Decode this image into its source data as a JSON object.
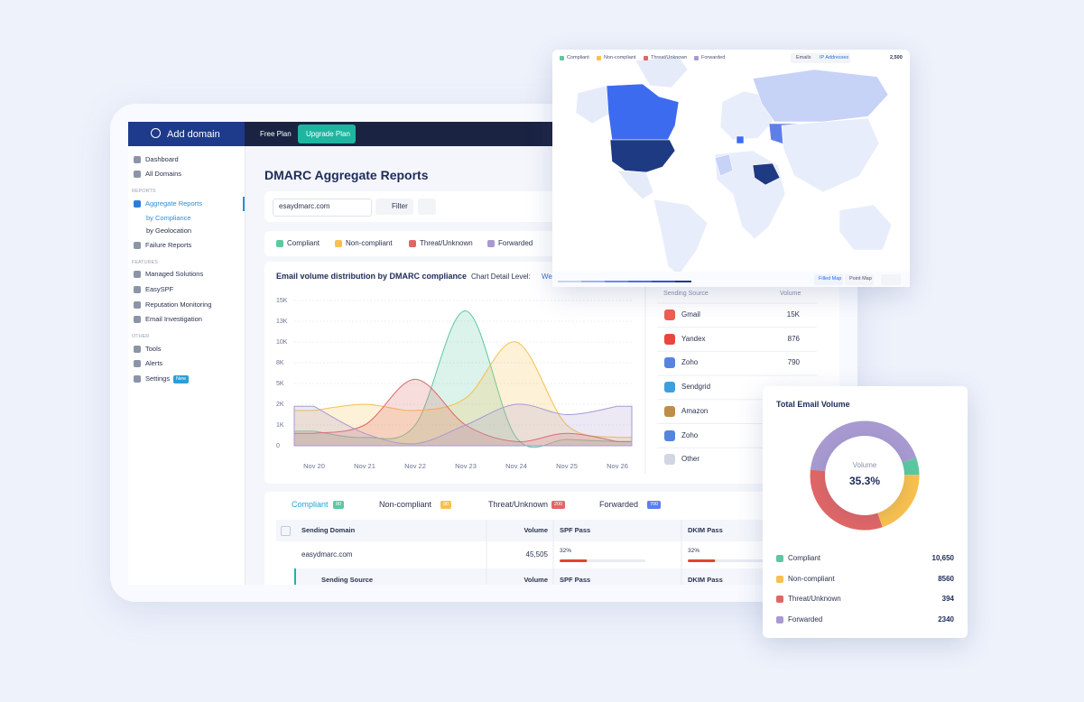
{
  "sidebar": {
    "add_domain": "Add domain",
    "top": [
      "Dashboard",
      "All Domains"
    ],
    "reports_title": "REPORTS",
    "reports": [
      "Aggregate Reports",
      "by Compliance",
      "by Geolocation",
      "Failure Reports"
    ],
    "features_title": "FEATURES",
    "features": [
      "Managed Solutions",
      "EasySPF",
      "Reputation Monitoring",
      "Email Investigation"
    ],
    "other_title": "OTHER",
    "other": [
      "Tools",
      "Alerts",
      "Settings"
    ],
    "new_badge": "New"
  },
  "topbar": {
    "free_plan": "Free Plan",
    "upgrade": "Upgrade Plan"
  },
  "page_title": "DMARC Aggregate Reports",
  "filters": {
    "domain": "esaydmarc.com",
    "filter": "Filter"
  },
  "chart_data": {
    "type": "area",
    "title": "Email volume distribution by DMARC compliance",
    "detail_label": "Chart Detail Level:",
    "detail_value": "Wee",
    "categories": [
      "Nov 20",
      "Nov 21",
      "Nov 22",
      "Nov 23",
      "Nov 24",
      "Nov 25",
      "Nov 26"
    ],
    "ylim": [
      0,
      15000
    ],
    "yticks": [
      0,
      {
        "value": 1000,
        "label": "1K"
      },
      {
        "value": 2000,
        "label": "2K"
      },
      {
        "value": 5000,
        "label": "5K"
      },
      {
        "value": 8000,
        "label": "8K"
      },
      {
        "value": 10000,
        "label": "10K"
      },
      {
        "value": 13000,
        "label": "13K"
      },
      {
        "value": 15000,
        "label": "15K"
      }
    ],
    "grid": true,
    "series": [
      {
        "name": "Compliant",
        "color": "#5cc8a0",
        "values": [
          700,
          400,
          1000,
          14000,
          400,
          300,
          200
        ]
      },
      {
        "name": "Non-compliant",
        "color": "#f8c04e",
        "values": [
          1700,
          2000,
          1700,
          2900,
          10000,
          1000,
          400
        ]
      },
      {
        "name": "Threat/Unknown",
        "color": "#e06666",
        "values": [
          600,
          1000,
          5600,
          1000,
          200,
          600,
          200
        ]
      },
      {
        "name": "Forwarded",
        "color": "#a89ad0",
        "values": [
          1900,
          600,
          100,
          1000,
          2000,
          1500,
          1900
        ]
      }
    ]
  },
  "sources": {
    "header": [
      "Sending Source",
      "Volume"
    ],
    "rows": [
      {
        "name": "Gmail",
        "volume": "15K"
      },
      {
        "name": "Yandex",
        "volume": "876"
      },
      {
        "name": "Zoho",
        "volume": "790"
      },
      {
        "name": "Sendgrid"
      },
      {
        "name": "Amazon"
      },
      {
        "name": "Zoho"
      },
      {
        "name": "Other"
      }
    ]
  },
  "tab_counts": [
    "80",
    "90",
    "200",
    "700"
  ],
  "table": {
    "header": [
      "Sending Domain",
      "Volume",
      "SPF Pass",
      "DKIM Pass"
    ],
    "rows": [
      {
        "domain": "easydmarc.com",
        "volume": "45,505",
        "spf": 32,
        "spf_label": "32%",
        "dkim": 32,
        "dkim_label": "32%"
      }
    ],
    "sub_header": [
      "Sending Source",
      "Volume",
      "SPF Pass",
      "DKIM Pass"
    ]
  },
  "map": {
    "tabs": [
      "Emails",
      "IP Addresses"
    ],
    "count": "2,500",
    "views": [
      "Filled Map",
      "Point Map"
    ]
  },
  "donut": {
    "title": "Total Email Volume",
    "center_label": "Volume",
    "center_value": "35.3%",
    "shares": [
      5,
      20,
      32,
      43
    ],
    "totals": [
      "10,650",
      "8560",
      "394",
      "2340"
    ]
  }
}
